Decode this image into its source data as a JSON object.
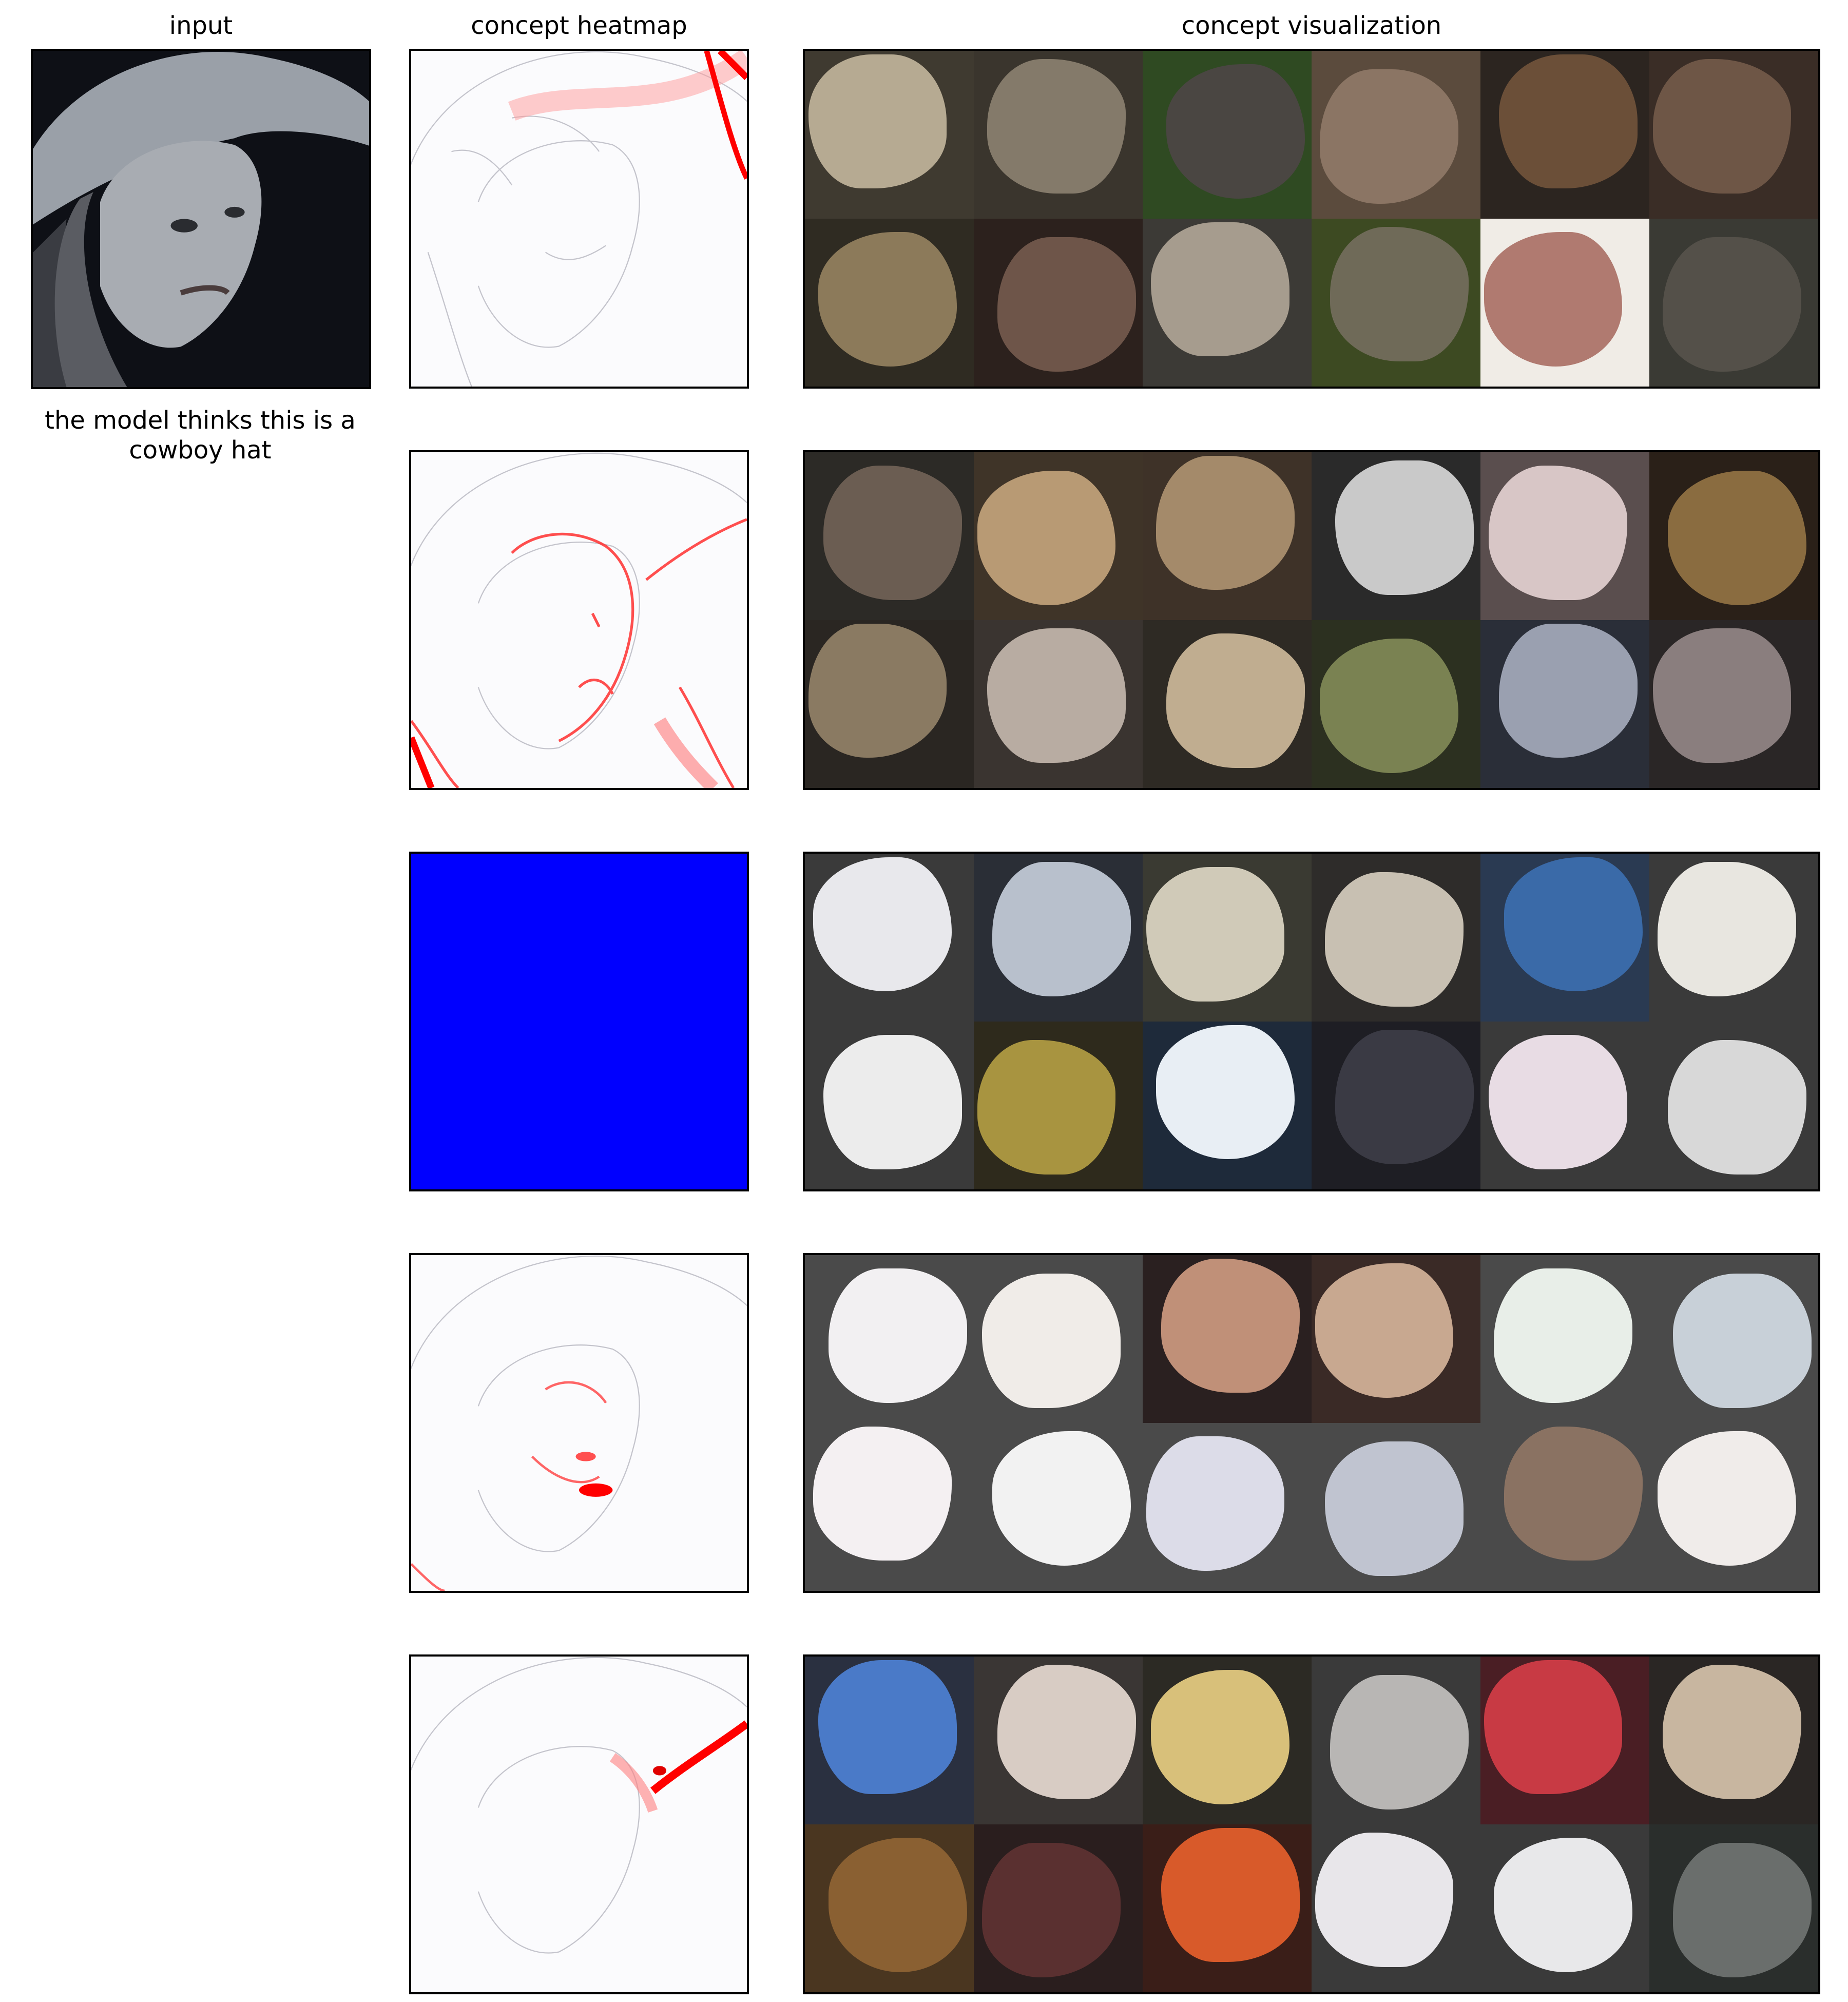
{
  "titles": {
    "input": "input",
    "heatmap": "concept heatmap",
    "visualization": "concept visualization"
  },
  "caption": "the model thinks this is a cowboy hat",
  "rows": [
    {
      "heatmap_style": "red-edges-hat-brim",
      "tiles": [
        {
          "bg": "#3f3a30",
          "fg": "#b6aa92"
        },
        {
          "bg": "#3a352d",
          "fg": "#847a6a"
        },
        {
          "bg": "#2f4a22",
          "fg": "#4a4642"
        },
        {
          "bg": "#5b4b3d",
          "fg": "#8b7564"
        },
        {
          "bg": "#2c2520",
          "fg": "#6b4f38"
        },
        {
          "bg": "#3a2d26",
          "fg": "#6e5646"
        },
        {
          "bg": "#2f2b22",
          "fg": "#8c7a5a"
        },
        {
          "bg": "#2c211d",
          "fg": "#6e5549"
        },
        {
          "bg": "#3c3a36",
          "fg": "#a69c8e"
        },
        {
          "bg": "#3d4a22",
          "fg": "#6f6a58"
        },
        {
          "bg": "#f0ece6",
          "fg": "#b07a70"
        },
        {
          "bg": "#3a3a34",
          "fg": "#545049"
        }
      ]
    },
    {
      "heatmap_style": "red-edges-face",
      "tiles": [
        {
          "bg": "#2c2a26",
          "fg": "#6b5d52"
        },
        {
          "bg": "#3f3428",
          "fg": "#b89a74"
        },
        {
          "bg": "#3e3228",
          "fg": "#a48a6a"
        },
        {
          "bg": "#2a2a2a",
          "fg": "#c9c9c9"
        },
        {
          "bg": "#5a4e4e",
          "fg": "#d8c6c6"
        },
        {
          "bg": "#2a2018",
          "fg": "#8a6c40"
        },
        {
          "bg": "#2a2622",
          "fg": "#8a7a62"
        },
        {
          "bg": "#3a3430",
          "fg": "#b8aca2"
        },
        {
          "bg": "#2e2a24",
          "fg": "#c0ad90"
        },
        {
          "bg": "#2c3020",
          "fg": "#7a8252"
        },
        {
          "bg": "#2a2e38",
          "fg": "#9aa0b0"
        },
        {
          "bg": "#2a2626",
          "fg": "#8a7e7e"
        }
      ]
    },
    {
      "heatmap_style": "solid-blue",
      "tiles": [
        {
          "bg": "#3a3a3a",
          "fg": "#e8e8ec"
        },
        {
          "bg": "#2a2e36",
          "fg": "#b8c0cc"
        },
        {
          "bg": "#3a3a32",
          "fg": "#d0cab8"
        },
        {
          "bg": "#2e2c2a",
          "fg": "#c8c0b2"
        },
        {
          "bg": "#2a3a52",
          "fg": "#3a6aa8"
        },
        {
          "bg": "#3a3a3a",
          "fg": "#e8e6e0"
        },
        {
          "bg": "#3a3a3a",
          "fg": "#ececec"
        },
        {
          "bg": "#2e2a1c",
          "fg": "#a89440"
        },
        {
          "bg": "#1e2a3a",
          "fg": "#e8eef4"
        },
        {
          "bg": "#1e1e24",
          "fg": "#3a3a44"
        },
        {
          "bg": "#3a3a3a",
          "fg": "#e8dce4"
        },
        {
          "bg": "#3a3a3a",
          "fg": "#d8d8d8"
        }
      ]
    },
    {
      "heatmap_style": "red-edges-mouth",
      "tiles": [
        {
          "bg": "#4a4a4a",
          "fg": "#f2f0f2"
        },
        {
          "bg": "#4a4a4a",
          "fg": "#f0ece8"
        },
        {
          "bg": "#2a2020",
          "fg": "#c09078"
        },
        {
          "bg": "#3a2a26",
          "fg": "#c8a890"
        },
        {
          "bg": "#4a4a4a",
          "fg": "#e8eee8"
        },
        {
          "bg": "#4a4a4a",
          "fg": "#c8d0d8"
        },
        {
          "bg": "#4a4a4a",
          "fg": "#f4f0f2"
        },
        {
          "bg": "#4a4a4a",
          "fg": "#f2f2f2"
        },
        {
          "bg": "#4a4a4a",
          "fg": "#dcdce8"
        },
        {
          "bg": "#4a4a4a",
          "fg": "#c0c4d0"
        },
        {
          "bg": "#4a4a4a",
          "fg": "#8a7262"
        },
        {
          "bg": "#4a4a4a",
          "fg": "#f0ecea"
        }
      ]
    },
    {
      "heatmap_style": "red-edges-hair",
      "tiles": [
        {
          "bg": "#2a3040",
          "fg": "#4a7ac8"
        },
        {
          "bg": "#3a3634",
          "fg": "#d8ccc4"
        },
        {
          "bg": "#2c2a24",
          "fg": "#d8c07a"
        },
        {
          "bg": "#3a3a3a",
          "fg": "#b8b6b4"
        },
        {
          "bg": "#4a1e24",
          "fg": "#c83a44"
        },
        {
          "bg": "#2a2624",
          "fg": "#c8b6a0"
        },
        {
          "bg": "#4a3620",
          "fg": "#8a6032"
        },
        {
          "bg": "#2a1e1e",
          "fg": "#5a3030"
        },
        {
          "bg": "#3a1e18",
          "fg": "#d85a2a"
        },
        {
          "bg": "#3a3a3a",
          "fg": "#e8e6ea"
        },
        {
          "bg": "#3a3a3a",
          "fg": "#e8e8ea"
        },
        {
          "bg": "#2a2e2c",
          "fg": "#6a6e6c"
        }
      ]
    }
  ],
  "colors": {
    "heat_red": "#ff0000",
    "heat_blue": "#0000ff",
    "edge_gray": "#b8b8c0"
  }
}
